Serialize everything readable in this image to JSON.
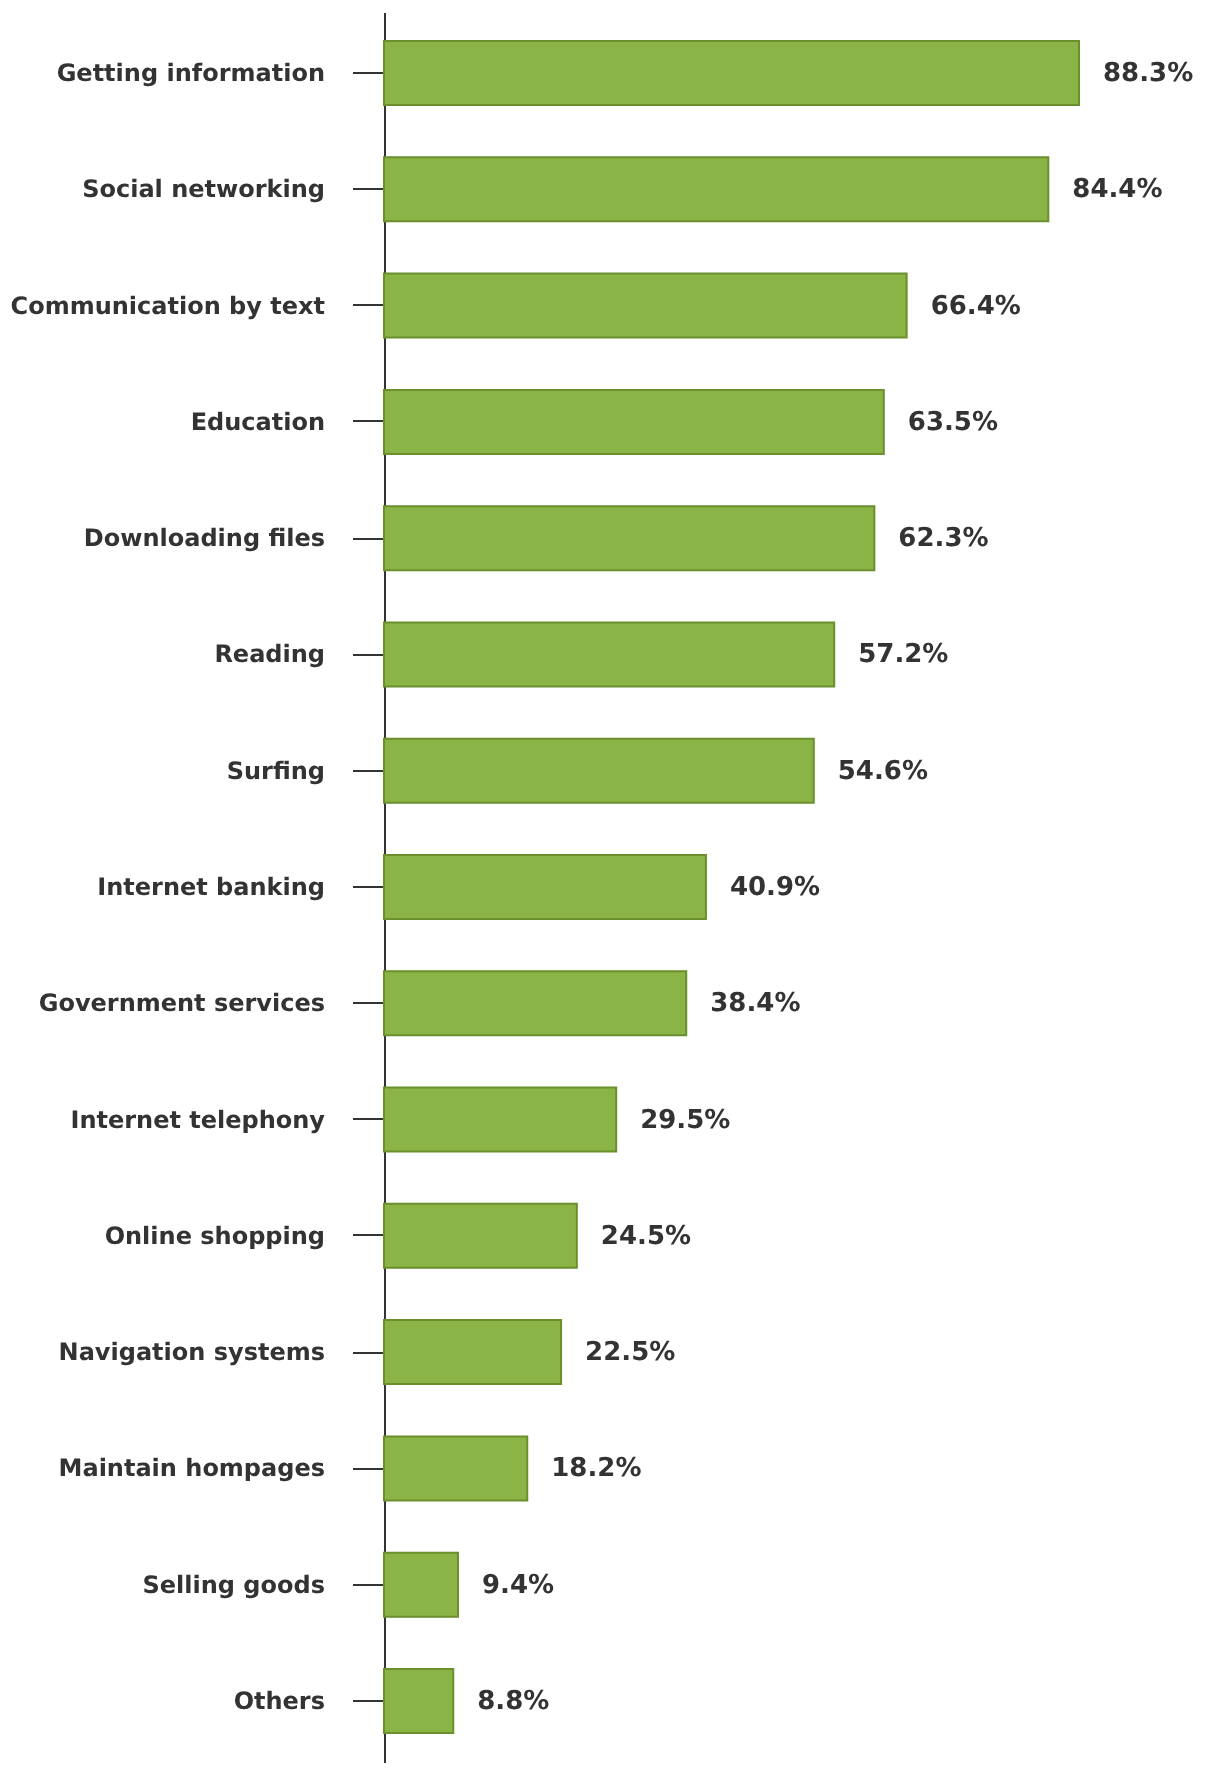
{
  "chart_data": {
    "type": "bar",
    "orientation": "horizontal",
    "grid": false,
    "categories": [
      "Getting information",
      "Social networking",
      "Communication by text",
      "Education",
      "Downloading files",
      "Reading",
      "Surfing",
      "Internet banking",
      "Government services",
      "Internet telephony",
      "Online shopping",
      "Navigation systems",
      "Maintain hompages",
      "Selling goods",
      "Others"
    ],
    "values": [
      88.3,
      84.4,
      66.4,
      63.5,
      62.3,
      57.2,
      54.6,
      40.9,
      38.4,
      29.5,
      24.5,
      22.5,
      18.2,
      9.4,
      8.8
    ],
    "value_labels": [
      "88.3%",
      "84.4%",
      "66.4%",
      "63.5%",
      "62.3%",
      "57.2%",
      "54.6%",
      "40.9%",
      "38.4%",
      "29.5%",
      "24.5%",
      "22.5%",
      "18.2%",
      "9.4%",
      "8.8%"
    ],
    "color": "#8ab446"
  }
}
